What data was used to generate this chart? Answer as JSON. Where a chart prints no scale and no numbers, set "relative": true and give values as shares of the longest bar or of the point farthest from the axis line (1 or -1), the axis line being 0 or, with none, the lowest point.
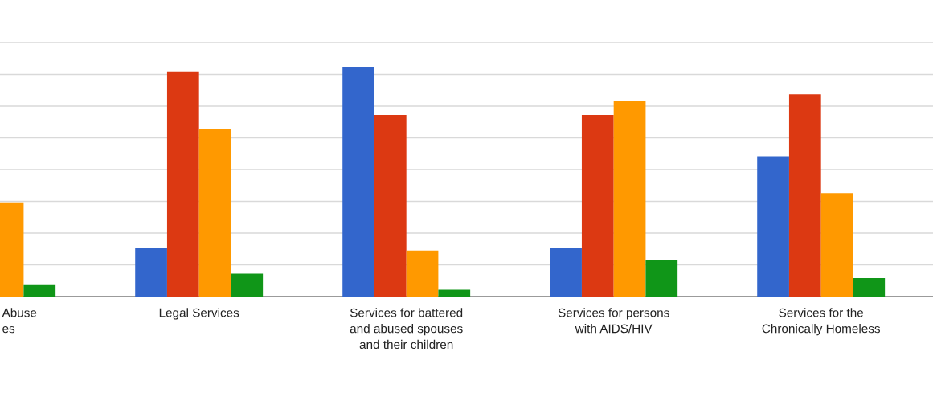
{
  "chart_data": {
    "type": "bar",
    "relative": true,
    "grid": "y",
    "legend": false,
    "categories": [
      "Abuse\nes",
      "Legal Services",
      "Services for battered\nand abused spouses\nand their children",
      "Services for persons\nwith AIDS/HIV",
      "Services for the\nChronically Homeless"
    ],
    "series": [
      {
        "color": "#3366cc",
        "values": [
          null,
          0.21,
          1.0,
          0.21,
          0.61
        ]
      },
      {
        "color": "#dc3912",
        "values": [
          null,
          0.98,
          0.79,
          0.79,
          0.88
        ]
      },
      {
        "color": "#ff9900",
        "values": [
          0.41,
          0.73,
          0.2,
          0.85,
          0.45
        ]
      },
      {
        "color": "#109618",
        "values": [
          0.05,
          0.1,
          0.03,
          0.16,
          0.08
        ]
      }
    ]
  }
}
